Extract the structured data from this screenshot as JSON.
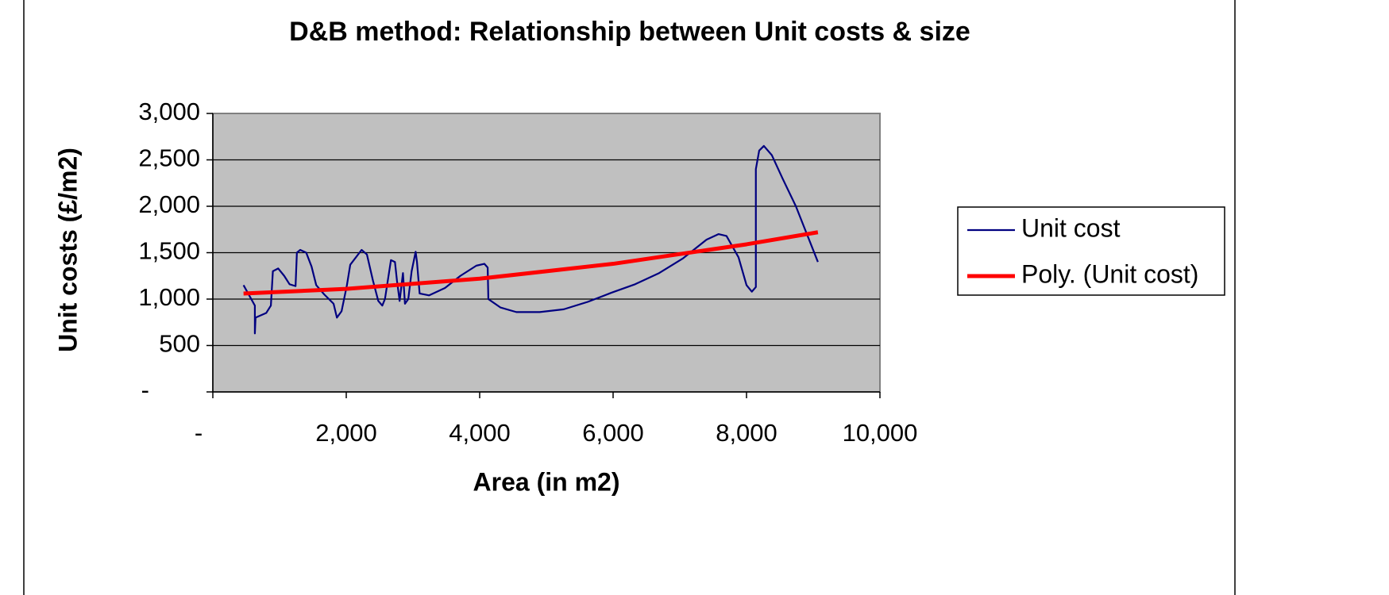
{
  "chart_data": {
    "type": "line",
    "title": "D&B  method: Relationship between Unit costs & size",
    "xlabel": "Area (in m2)",
    "ylabel": "Unit costs (£/m2)",
    "xlim": [
      0,
      10000
    ],
    "xticks": [
      {
        "value": 0,
        "label": "-"
      },
      {
        "value": 2000,
        "label": "2,000"
      },
      {
        "value": 4000,
        "label": "4,000"
      },
      {
        "value": 6000,
        "label": "6,000"
      },
      {
        "value": 8000,
        "label": "8,000"
      },
      {
        "value": 10000,
        "label": "10,000"
      }
    ],
    "ylim": [
      0,
      3000
    ],
    "yticks": [
      {
        "value": 0,
        "label": "-"
      },
      {
        "value": 500,
        "label": "500"
      },
      {
        "value": 1000,
        "label": "1,000"
      },
      {
        "value": 1500,
        "label": "1,500"
      },
      {
        "value": 2000,
        "label": "2,000"
      },
      {
        "value": 2500,
        "label": "2,500"
      },
      {
        "value": 3000,
        "label": "3,000"
      }
    ],
    "grid": true,
    "legend": "right",
    "series": [
      {
        "name": "Unit cost",
        "color": "#000080",
        "x": [
          460,
          630,
          630,
          640,
          800,
          870,
          900,
          980,
          1070,
          1150,
          1240,
          1260,
          1310,
          1400,
          1480,
          1550,
          1670,
          1810,
          1860,
          1930,
          2010,
          2060,
          2230,
          2310,
          2400,
          2480,
          2540,
          2580,
          2670,
          2730,
          2760,
          2800,
          2850,
          2880,
          2930,
          2980,
          3040,
          3060,
          3100,
          3240,
          3480,
          3710,
          3950,
          4070,
          4120,
          4130,
          4310,
          4550,
          4900,
          5260,
          5620,
          5980,
          6330,
          6690,
          7050,
          7400,
          7580,
          7700,
          7880,
          8000,
          8080,
          8140,
          8140,
          8190,
          8260,
          8380,
          8540,
          8740,
          9070
        ],
        "values": [
          1150,
          930,
          630,
          800,
          850,
          930,
          1300,
          1330,
          1250,
          1160,
          1140,
          1500,
          1530,
          1500,
          1350,
          1150,
          1050,
          950,
          800,
          870,
          1150,
          1370,
          1530,
          1480,
          1200,
          980,
          930,
          1000,
          1420,
          1400,
          1200,
          980,
          1280,
          950,
          1000,
          1300,
          1510,
          1400,
          1060,
          1040,
          1120,
          1250,
          1360,
          1380,
          1340,
          1000,
          910,
          860,
          860,
          890,
          970,
          1070,
          1160,
          1280,
          1440,
          1640,
          1700,
          1680,
          1450,
          1150,
          1080,
          1130,
          2400,
          2600,
          2650,
          2550,
          2300,
          2000,
          1400
        ]
      },
      {
        "name": "Poly. (Unit cost)",
        "color": "#ff0000",
        "x": [
          460,
          2000,
          4000,
          6000,
          8000,
          9070
        ],
        "values": [
          1060,
          1110,
          1220,
          1380,
          1590,
          1720
        ]
      }
    ]
  }
}
